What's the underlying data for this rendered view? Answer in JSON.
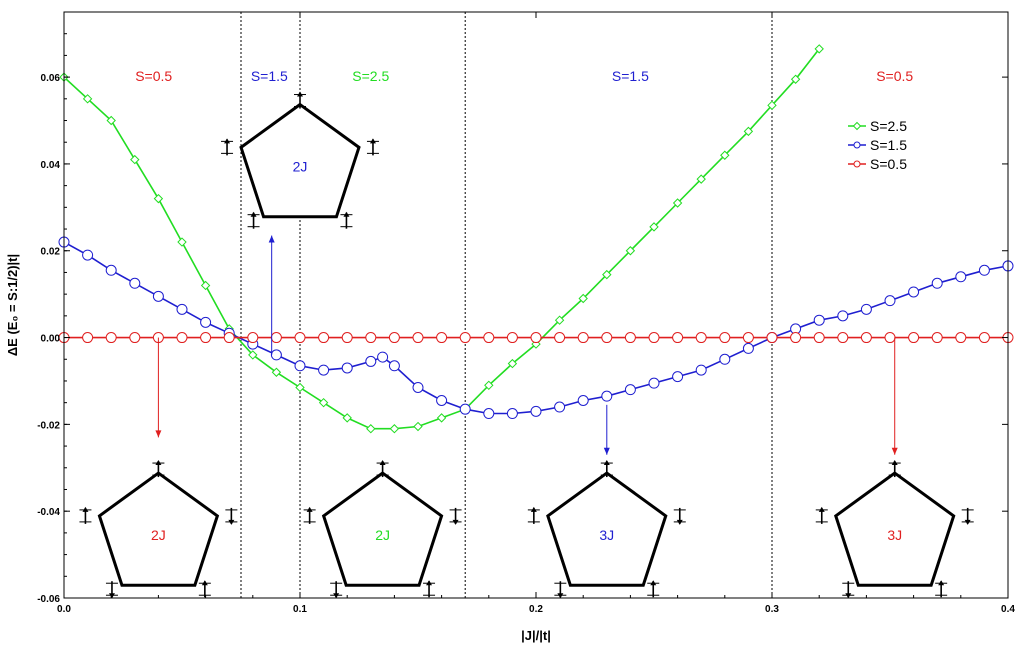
{
  "colors": {
    "s25": "#22dd22",
    "s15": "#1f1fd0",
    "s05": "#e02020",
    "grid": "#000000"
  },
  "chart_data": {
    "type": "line",
    "xlabel": "|J|/|t|",
    "ylabel": "ΔE (E₀ = S:1/2)|t|",
    "xlim": [
      0,
      0.4
    ],
    "ylim": [
      -0.06,
      0.075
    ],
    "x_ticks": [
      0.0,
      0.1,
      0.2,
      0.3,
      0.4
    ],
    "x_tick_labels": [
      "0.0",
      "0.1",
      "0.2",
      "0.3",
      "0.4"
    ],
    "y_ticks": [
      -0.06,
      -0.04,
      -0.02,
      0.0,
      0.02,
      0.04,
      0.06
    ],
    "y_tick_labels": [
      "-0.06",
      "-0.04",
      "-0.02",
      "0.00",
      "0.02",
      "0.04",
      "0.06"
    ],
    "boundaries": [
      0.075,
      0.1,
      0.17,
      0.3
    ],
    "legend_position": "top-right",
    "series": [
      {
        "name": "S=2.5",
        "color_key": "s25",
        "marker": "diamond",
        "x": [
          0.0,
          0.01,
          0.02,
          0.03,
          0.04,
          0.05,
          0.06,
          0.07,
          0.08,
          0.09,
          0.1,
          0.11,
          0.12,
          0.13,
          0.14,
          0.15,
          0.16,
          0.17,
          0.18,
          0.19,
          0.2,
          0.21,
          0.22,
          0.23,
          0.24,
          0.25,
          0.26,
          0.27,
          0.28,
          0.29,
          0.3,
          0.31,
          0.32
        ],
        "y": [
          0.06,
          0.055,
          0.05,
          0.041,
          0.032,
          0.022,
          0.012,
          0.002,
          -0.004,
          -0.008,
          -0.0115,
          -0.015,
          -0.0185,
          -0.021,
          -0.021,
          -0.0205,
          -0.0185,
          -0.0165,
          -0.011,
          -0.006,
          -0.0015,
          0.004,
          0.009,
          0.0145,
          0.02,
          0.0255,
          0.031,
          0.0365,
          0.042,
          0.0475,
          0.0535,
          0.0595,
          0.0665
        ]
      },
      {
        "name": "S=1.5",
        "color_key": "s15",
        "marker": "circle",
        "x": [
          0.0,
          0.01,
          0.02,
          0.03,
          0.04,
          0.05,
          0.06,
          0.07,
          0.08,
          0.09,
          0.1,
          0.11,
          0.12,
          0.13,
          0.135,
          0.14,
          0.15,
          0.16,
          0.17,
          0.18,
          0.19,
          0.2,
          0.21,
          0.22,
          0.23,
          0.24,
          0.25,
          0.26,
          0.27,
          0.28,
          0.29,
          0.3,
          0.31,
          0.32,
          0.33,
          0.34,
          0.35,
          0.36,
          0.37,
          0.38,
          0.39,
          0.4
        ],
        "y": [
          0.022,
          0.019,
          0.0155,
          0.0125,
          0.0095,
          0.0065,
          0.0035,
          0.001,
          -0.0015,
          -0.004,
          -0.0065,
          -0.0075,
          -0.007,
          -0.0055,
          -0.0045,
          -0.0065,
          -0.0115,
          -0.0145,
          -0.0165,
          -0.0175,
          -0.0175,
          -0.017,
          -0.016,
          -0.0145,
          -0.0135,
          -0.012,
          -0.0105,
          -0.009,
          -0.0075,
          -0.005,
          -0.0025,
          0.0,
          0.002,
          0.004,
          0.005,
          0.0065,
          0.0085,
          0.0105,
          0.0125,
          0.014,
          0.0155,
          0.0165
        ]
      },
      {
        "name": "S=0.5",
        "color_key": "s05",
        "marker": "circle",
        "x": [
          0.0,
          0.01,
          0.02,
          0.03,
          0.04,
          0.05,
          0.06,
          0.07,
          0.08,
          0.09,
          0.1,
          0.11,
          0.12,
          0.13,
          0.14,
          0.15,
          0.16,
          0.17,
          0.18,
          0.19,
          0.2,
          0.21,
          0.22,
          0.23,
          0.24,
          0.25,
          0.26,
          0.27,
          0.28,
          0.29,
          0.3,
          0.31,
          0.32,
          0.33,
          0.34,
          0.35,
          0.36,
          0.37,
          0.38,
          0.39,
          0.4
        ],
        "y": [
          0,
          0,
          0,
          0,
          0,
          0,
          0,
          0,
          0,
          0,
          0,
          0,
          0,
          0,
          0,
          0,
          0,
          0,
          0,
          0,
          0,
          0,
          0,
          0,
          0,
          0,
          0,
          0,
          0,
          0,
          0,
          0,
          0,
          0,
          0,
          0,
          0,
          0,
          0,
          0,
          0
        ]
      }
    ],
    "region_labels": [
      {
        "text": "S=0.5",
        "x": 0.038,
        "color_key": "s05"
      },
      {
        "text": "S=1.5",
        "x": 0.087,
        "color_key": "s15"
      },
      {
        "text": "S=2.5",
        "x": 0.13,
        "color_key": "s25"
      },
      {
        "text": "S=1.5",
        "x": 0.24,
        "color_key": "s15"
      },
      {
        "text": "S=0.5",
        "x": 0.352,
        "color_key": "s05"
      }
    ],
    "pentagons": [
      {
        "label": "2J",
        "color_key": "s05",
        "cx": 0.04,
        "cy": -0.0455,
        "arrow_from_y": 0.0,
        "arrow_to_y": -0.023,
        "arrow_x": 0.04
      },
      {
        "label": "2J",
        "color_key": "s15",
        "cx": 0.1,
        "cy": 0.0394,
        "arrow_from_y": -0.004,
        "arrow_to_y": 0.0235,
        "arrow_x": 0.088
      },
      {
        "label": "2J",
        "color_key": "s25",
        "cx": 0.135,
        "cy": -0.0455,
        "arrow_from_y": null,
        "arrow_to_y": null,
        "arrow_x": null
      },
      {
        "label": "3J",
        "color_key": "s15",
        "cx": 0.23,
        "cy": -0.0455,
        "arrow_from_y": -0.0155,
        "arrow_to_y": -0.027,
        "arrow_x": 0.23
      },
      {
        "label": "3J",
        "color_key": "s05",
        "cx": 0.352,
        "cy": -0.0455,
        "arrow_from_y": 0.0,
        "arrow_to_y": -0.027,
        "arrow_x": 0.352
      }
    ]
  }
}
